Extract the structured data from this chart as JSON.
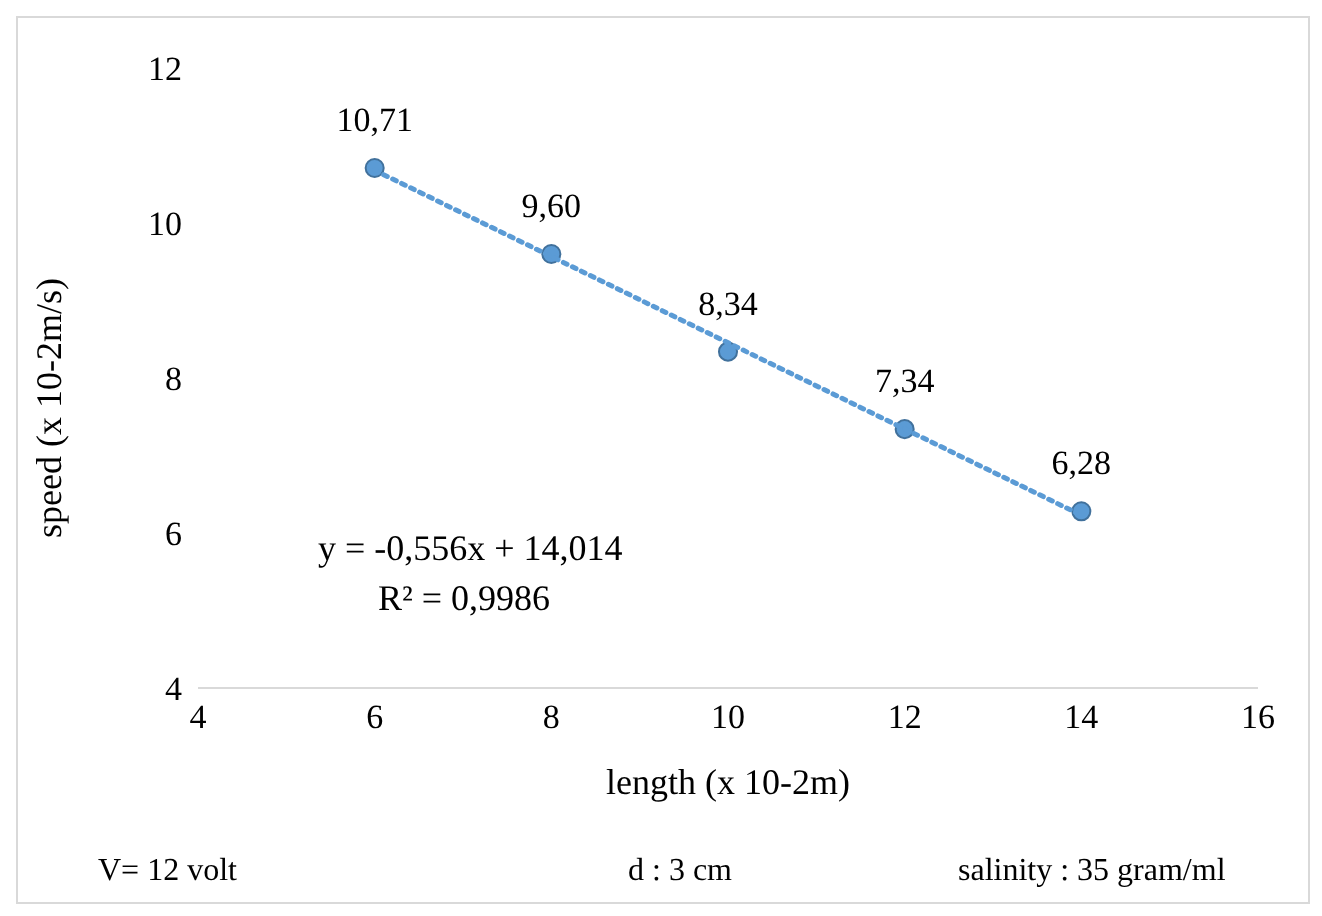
{
  "chart_data": {
    "type": "scatter",
    "xlabel": "length (x 10-2m)",
    "ylabel": "speed (x 10-2m/s)",
    "series": [
      {
        "marker": "circle",
        "color": "#5b9bd5",
        "x": [
          6,
          8,
          10,
          12,
          14
        ],
        "values": [
          10.71,
          9.6,
          8.34,
          7.34,
          6.28
        ],
        "value_labels": [
          "10,71",
          "9,60",
          "8,34",
          "7,34",
          "6,28"
        ]
      },
      {
        "type": "line",
        "marker": "none",
        "color": "#5b9bd5",
        "line_style": "dotted",
        "x": [
          6,
          14
        ],
        "values": [
          10.68,
          6.23
        ]
      }
    ],
    "xlim": [
      4,
      16
    ],
    "xticks": [
      4,
      6,
      8,
      10,
      12,
      14,
      16
    ],
    "ylim": [
      4,
      12
    ],
    "yticks": [
      4,
      6,
      8,
      10,
      12
    ],
    "grid": false,
    "legend": false,
    "annotations": [
      "y = -0,556x + 14,014",
      "R² = 0,9986",
      "V= 12 volt",
      "d : 3 cm",
      "salinity : 35 gram/ml"
    ]
  }
}
